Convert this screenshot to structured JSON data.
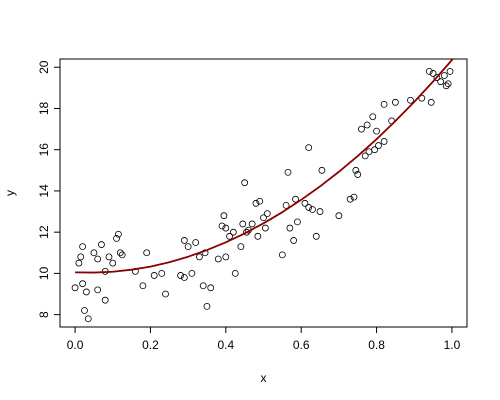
{
  "chart_data": {
    "type": "scatter",
    "title": "",
    "xlabel": "x",
    "ylabel": "y",
    "xlim": [
      -0.04,
      1.04
    ],
    "ylim": [
      7.4,
      20.4
    ],
    "xticks": [
      0.0,
      0.2,
      0.4,
      0.6,
      0.8,
      1.0
    ],
    "xtick_labels": [
      "0.0",
      "0.2",
      "0.4",
      "0.6",
      "0.8",
      "1.0"
    ],
    "yticks": [
      8,
      10,
      12,
      14,
      16,
      18,
      20
    ],
    "ytick_labels": [
      "8",
      "10",
      "12",
      "14",
      "16",
      "18",
      "20"
    ],
    "grid": false,
    "legend": "none",
    "colors": {
      "points": "#000000",
      "curve": "#8b0000"
    },
    "points": [
      [
        0.0,
        9.3
      ],
      [
        0.01,
        10.5
      ],
      [
        0.015,
        10.8
      ],
      [
        0.02,
        11.3
      ],
      [
        0.02,
        9.5
      ],
      [
        0.025,
        8.2
      ],
      [
        0.03,
        9.1
      ],
      [
        0.035,
        7.8
      ],
      [
        0.05,
        11.0
      ],
      [
        0.06,
        9.2
      ],
      [
        0.06,
        10.7
      ],
      [
        0.07,
        11.4
      ],
      [
        0.08,
        10.1
      ],
      [
        0.08,
        8.7
      ],
      [
        0.09,
        10.8
      ],
      [
        0.1,
        10.5
      ],
      [
        0.11,
        11.7
      ],
      [
        0.115,
        11.9
      ],
      [
        0.12,
        11.0
      ],
      [
        0.125,
        10.9
      ],
      [
        0.16,
        10.1
      ],
      [
        0.18,
        9.4
      ],
      [
        0.19,
        11.0
      ],
      [
        0.21,
        9.9
      ],
      [
        0.23,
        10.0
      ],
      [
        0.24,
        9.0
      ],
      [
        0.28,
        9.9
      ],
      [
        0.29,
        9.8
      ],
      [
        0.29,
        11.6
      ],
      [
        0.3,
        11.3
      ],
      [
        0.31,
        10.0
      ],
      [
        0.32,
        11.5
      ],
      [
        0.33,
        10.8
      ],
      [
        0.34,
        9.4
      ],
      [
        0.345,
        11.0
      ],
      [
        0.35,
        8.4
      ],
      [
        0.36,
        9.3
      ],
      [
        0.38,
        10.7
      ],
      [
        0.39,
        12.3
      ],
      [
        0.395,
        12.8
      ],
      [
        0.4,
        10.8
      ],
      [
        0.4,
        12.2
      ],
      [
        0.41,
        11.8
      ],
      [
        0.42,
        12.0
      ],
      [
        0.425,
        10.0
      ],
      [
        0.44,
        11.3
      ],
      [
        0.445,
        12.4
      ],
      [
        0.45,
        14.4
      ],
      [
        0.455,
        12.0
      ],
      [
        0.46,
        12.1
      ],
      [
        0.47,
        12.4
      ],
      [
        0.48,
        13.4
      ],
      [
        0.485,
        11.8
      ],
      [
        0.49,
        13.5
      ],
      [
        0.5,
        12.7
      ],
      [
        0.505,
        12.2
      ],
      [
        0.51,
        12.9
      ],
      [
        0.55,
        10.9
      ],
      [
        0.56,
        13.3
      ],
      [
        0.565,
        14.9
      ],
      [
        0.57,
        12.2
      ],
      [
        0.58,
        11.6
      ],
      [
        0.585,
        13.6
      ],
      [
        0.59,
        12.5
      ],
      [
        0.61,
        13.4
      ],
      [
        0.62,
        16.1
      ],
      [
        0.62,
        13.2
      ],
      [
        0.63,
        13.1
      ],
      [
        0.64,
        11.8
      ],
      [
        0.65,
        13.0
      ],
      [
        0.655,
        15.0
      ],
      [
        0.7,
        12.8
      ],
      [
        0.73,
        13.6
      ],
      [
        0.74,
        13.7
      ],
      [
        0.745,
        15.0
      ],
      [
        0.75,
        14.8
      ],
      [
        0.76,
        17.0
      ],
      [
        0.77,
        15.7
      ],
      [
        0.775,
        17.2
      ],
      [
        0.78,
        15.9
      ],
      [
        0.79,
        17.6
      ],
      [
        0.795,
        16.0
      ],
      [
        0.8,
        16.9
      ],
      [
        0.805,
        16.2
      ],
      [
        0.82,
        16.4
      ],
      [
        0.82,
        18.2
      ],
      [
        0.84,
        17.4
      ],
      [
        0.85,
        18.3
      ],
      [
        0.89,
        18.4
      ],
      [
        0.92,
        18.5
      ],
      [
        0.94,
        19.8
      ],
      [
        0.945,
        18.3
      ],
      [
        0.95,
        19.7
      ],
      [
        0.96,
        19.5
      ],
      [
        0.97,
        19.3
      ],
      [
        0.98,
        19.6
      ],
      [
        0.985,
        19.1
      ],
      [
        0.99,
        19.2
      ],
      [
        0.995,
        19.8
      ]
    ],
    "curve": {
      "name": "",
      "model": "y = 10.05 - 0.8x + 11.1x^2",
      "x": [
        0.0,
        0.05,
        0.1,
        0.15,
        0.2,
        0.25,
        0.3,
        0.35,
        0.4,
        0.45,
        0.5,
        0.55,
        0.6,
        0.65,
        0.7,
        0.75,
        0.8,
        0.85,
        0.9,
        0.95,
        1.0,
        1.02
      ],
      "y": [
        10.05,
        10.04,
        10.08,
        10.18,
        10.33,
        10.54,
        10.81,
        11.13,
        11.51,
        11.94,
        12.43,
        12.97,
        13.57,
        14.22,
        14.93,
        15.69,
        16.51,
        17.39,
        18.32,
        19.31,
        20.35,
        20.78
      ]
    }
  }
}
